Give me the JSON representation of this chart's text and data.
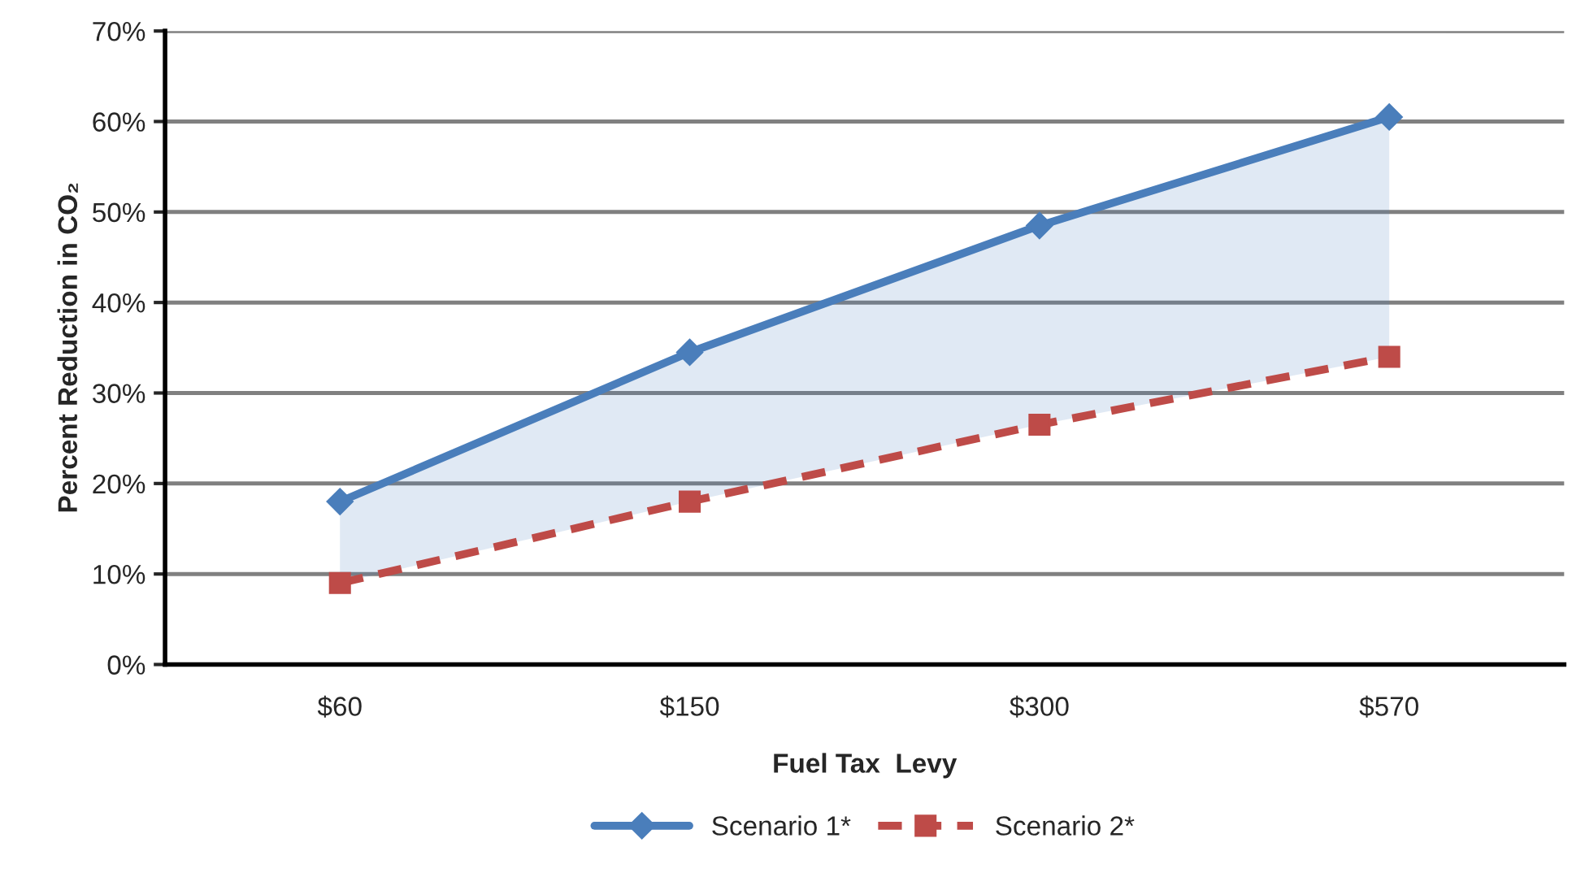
{
  "chart_data": {
    "type": "line",
    "xlabel": "Fuel Tax  Levy",
    "ylabel": "Percent Reduction in CO₂",
    "categories": [
      "$60",
      "$150",
      "$300",
      "$570"
    ],
    "series": [
      {
        "name": "Scenario 1*",
        "color": "#4a7ebb",
        "values": [
          18,
          34.5,
          48.5,
          60.5
        ],
        "marker": "diamond",
        "line_style": "solid",
        "lower": [
          9,
          18,
          26.5,
          34
        ],
        "upper": [
          18,
          34.5,
          48.5,
          60.5
        ]
      },
      {
        "name": "Scenario 2*",
        "color": "#be4b48",
        "values": [
          9,
          18,
          26.5,
          34
        ],
        "marker": "square",
        "line_style": "dashed"
      }
    ],
    "ylim": [
      0,
      70
    ],
    "yticks": [
      {
        "value": 0,
        "label": "0%"
      },
      {
        "value": 10,
        "label": "10%"
      },
      {
        "value": 20,
        "label": "20%"
      },
      {
        "value": 30,
        "label": "30%"
      },
      {
        "value": 40,
        "label": "40%"
      },
      {
        "value": 50,
        "label": "50%"
      },
      {
        "value": 60,
        "label": "60%"
      },
      {
        "value": 70,
        "label": "70%"
      }
    ],
    "grid": "y",
    "legend": "bottom"
  }
}
